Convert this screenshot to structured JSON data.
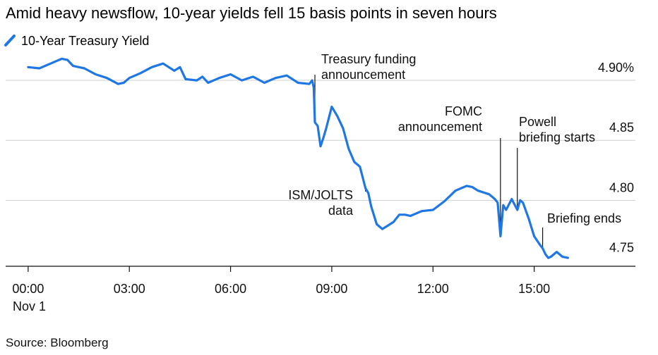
{
  "chart_data": {
    "type": "line",
    "title": "Amid heavy newsflow, 10-year yields fell 15 basis points in seven hours",
    "source": "Source: Bloomberg",
    "legend_position": "top-left",
    "series": [
      {
        "name": "10-Year Treasury Yield",
        "color": "#1f77e6",
        "x": [
          "00:00",
          "00:20",
          "00:40",
          "01:00",
          "01:10",
          "01:20",
          "01:40",
          "02:00",
          "02:20",
          "02:40",
          "02:50",
          "03:00",
          "03:20",
          "03:40",
          "04:00",
          "04:20",
          "04:30",
          "04:40",
          "05:00",
          "05:10",
          "05:20",
          "05:40",
          "06:00",
          "06:20",
          "06:40",
          "07:00",
          "07:20",
          "07:40",
          "08:00",
          "08:20",
          "08:25",
          "08:28",
          "08:30",
          "08:35",
          "08:40",
          "08:45",
          "08:50",
          "09:00",
          "09:10",
          "09:20",
          "09:30",
          "09:40",
          "09:50",
          "10:00",
          "10:05",
          "10:10",
          "10:20",
          "10:30",
          "10:40",
          "10:50",
          "11:00",
          "11:10",
          "11:20",
          "11:40",
          "12:00",
          "12:20",
          "12:40",
          "13:00",
          "13:10",
          "13:20",
          "13:40",
          "13:50",
          "13:55",
          "14:00",
          "14:05",
          "14:10",
          "14:20",
          "14:30",
          "14:35",
          "14:40",
          "14:50",
          "15:00",
          "15:10",
          "15:15",
          "15:20",
          "15:25",
          "15:30",
          "15:40",
          "15:50",
          "16:00"
        ],
        "y": [
          4.911,
          4.91,
          4.914,
          4.918,
          4.917,
          4.912,
          4.91,
          4.905,
          4.902,
          4.897,
          4.898,
          4.902,
          4.906,
          4.911,
          4.914,
          4.908,
          4.911,
          4.901,
          4.9,
          4.903,
          4.898,
          4.902,
          4.905,
          4.9,
          4.903,
          4.898,
          4.902,
          4.904,
          4.898,
          4.897,
          4.9,
          4.894,
          4.865,
          4.862,
          4.845,
          4.852,
          4.86,
          4.878,
          4.87,
          4.86,
          4.843,
          4.832,
          4.828,
          4.81,
          4.806,
          4.795,
          4.78,
          4.776,
          4.779,
          4.782,
          4.788,
          4.788,
          4.787,
          4.791,
          4.792,
          4.799,
          4.808,
          4.812,
          4.811,
          4.808,
          4.805,
          4.801,
          4.798,
          4.77,
          4.796,
          4.792,
          4.801,
          4.792,
          4.8,
          4.798,
          4.785,
          4.77,
          4.763,
          4.76,
          4.755,
          4.752,
          4.753,
          4.757,
          4.753,
          4.752
        ]
      }
    ],
    "x_ticks": [
      "00:00",
      "03:00",
      "06:00",
      "09:00",
      "12:00",
      "15:00"
    ],
    "x_sublabel": "Nov 1",
    "xlim": [
      "-00:40",
      "18:00"
    ],
    "y_ticks": [
      {
        "value": 4.9,
        "label": "4.90%"
      },
      {
        "value": 4.85,
        "label": "4.85"
      },
      {
        "value": 4.8,
        "label": "4.80"
      },
      {
        "value": 4.75,
        "label": "4.75"
      }
    ],
    "ylim": [
      4.745,
      4.92
    ],
    "grid": "horizontal",
    "annotations": [
      {
        "lines": [
          "Treasury funding",
          "announcement"
        ],
        "time": "08:30"
      },
      {
        "lines": [
          "ISM/JOLTS",
          "data"
        ],
        "time": "10:00"
      },
      {
        "lines": [
          "FOMC",
          "announcement"
        ],
        "time": "14:00"
      },
      {
        "lines": [
          "Powell",
          "briefing starts"
        ],
        "time": "14:30"
      },
      {
        "lines": [
          "Briefing ends"
        ],
        "time": "15:15"
      }
    ]
  }
}
